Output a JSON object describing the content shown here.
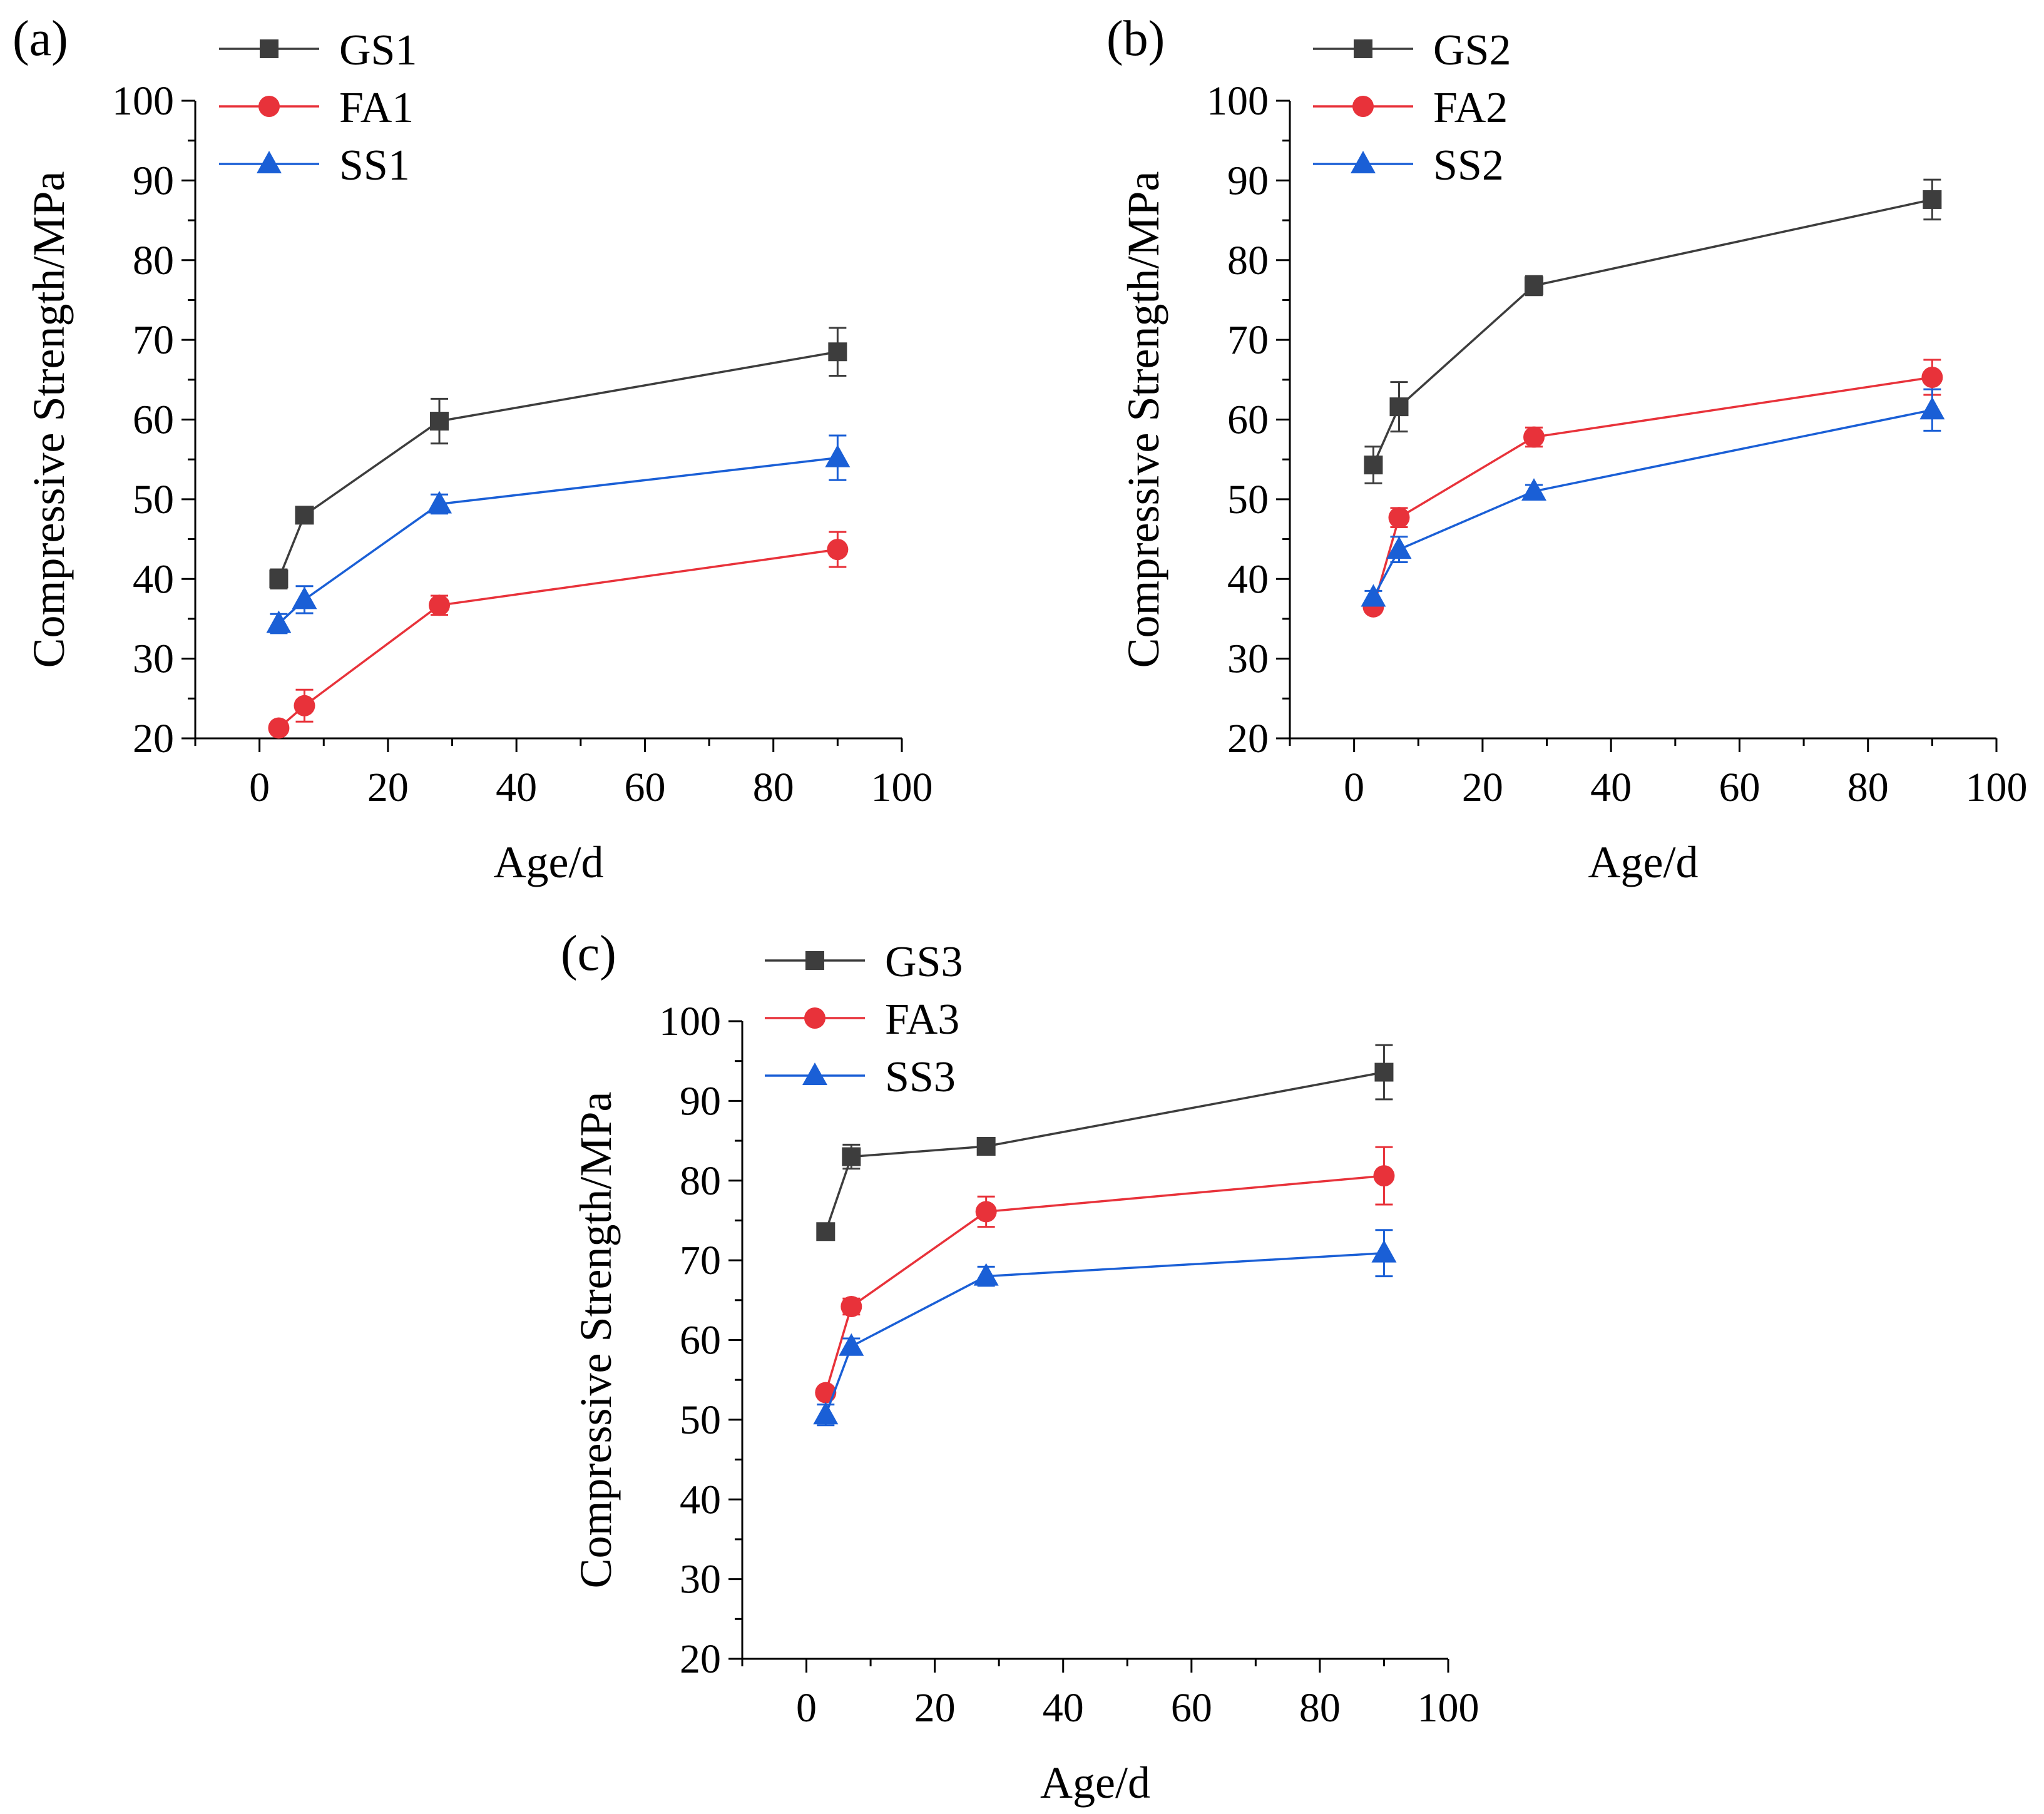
{
  "chart_data": [
    {
      "type": "line",
      "panel_label": "(a)",
      "xlabel": "Age/d",
      "ylabel": "Compressive Strength/MPa",
      "xlim": [
        -10,
        100
      ],
      "ylim": [
        20,
        100
      ],
      "x_ticks": [
        "0",
        "20",
        "40",
        "60",
        "80",
        "100"
      ],
      "y_ticks": [
        "20",
        "30",
        "40",
        "50",
        "60",
        "70",
        "80",
        "90",
        "100"
      ],
      "legend_position": "top-left",
      "x": [
        3,
        7,
        28,
        90
      ],
      "series": [
        {
          "name": "GS1",
          "color": "#3d3d3d",
          "marker": "square",
          "values": [
            40.0,
            48.0,
            59.8,
            68.5
          ],
          "errors": [
            1.2,
            0.6,
            2.8,
            3.0
          ]
        },
        {
          "name": "FA1",
          "color": "#e8323a",
          "marker": "circle",
          "values": [
            21.3,
            24.1,
            36.7,
            43.7
          ],
          "errors": [
            0.6,
            2.0,
            1.2,
            2.2
          ]
        },
        {
          "name": "SS1",
          "color": "#1a5fd6",
          "marker": "triangle",
          "values": [
            34.4,
            37.4,
            49.4,
            55.2
          ],
          "errors": [
            1.2,
            1.7,
            1.2,
            2.8
          ]
        }
      ]
    },
    {
      "type": "line",
      "panel_label": "(b)",
      "xlabel": "Age/d",
      "ylabel": "Compressive Strength/MPa",
      "xlim": [
        -10,
        100
      ],
      "ylim": [
        20,
        100
      ],
      "x_ticks": [
        "0",
        "20",
        "40",
        "60",
        "80",
        "100"
      ],
      "y_ticks": [
        "20",
        "30",
        "40",
        "50",
        "60",
        "70",
        "80",
        "90",
        "100"
      ],
      "legend_position": "top-left",
      "x": [
        3,
        7,
        28,
        90
      ],
      "series": [
        {
          "name": "GS2",
          "color": "#3d3d3d",
          "marker": "square",
          "values": [
            54.3,
            61.6,
            76.8,
            87.6
          ],
          "errors": [
            2.3,
            3.1,
            1.2,
            2.5
          ]
        },
        {
          "name": "FA2",
          "color": "#e8323a",
          "marker": "circle",
          "values": [
            36.5,
            47.7,
            57.8,
            65.3
          ],
          "errors": [
            0.6,
            1.2,
            1.2,
            2.2
          ]
        },
        {
          "name": "SS2",
          "color": "#1a5fd6",
          "marker": "triangle",
          "values": [
            37.7,
            43.7,
            51.0,
            61.2
          ],
          "errors": [
            0.8,
            1.6,
            0.8,
            2.6
          ]
        }
      ]
    },
    {
      "type": "line",
      "panel_label": "(c)",
      "xlabel": "Age/d",
      "ylabel": "Compressive Strength/MPa",
      "xlim": [
        -10,
        100
      ],
      "ylim": [
        20,
        100
      ],
      "x_ticks": [
        "0",
        "20",
        "40",
        "60",
        "80",
        "100"
      ],
      "y_ticks": [
        "20",
        "30",
        "40",
        "50",
        "60",
        "70",
        "80",
        "90",
        "100"
      ],
      "legend_position": "top-left",
      "x": [
        3,
        7,
        28,
        90
      ],
      "series": [
        {
          "name": "GS3",
          "color": "#3d3d3d",
          "marker": "square",
          "values": [
            73.6,
            83.0,
            84.3,
            93.6
          ],
          "errors": [
            0.6,
            1.5,
            0.8,
            3.4
          ]
        },
        {
          "name": "FA3",
          "color": "#e8323a",
          "marker": "circle",
          "values": [
            53.4,
            64.2,
            76.1,
            80.6
          ],
          "errors": [
            0.6,
            1.0,
            1.9,
            3.6
          ]
        },
        {
          "name": "SS3",
          "color": "#1a5fd6",
          "marker": "triangle",
          "values": [
            50.6,
            59.2,
            68.0,
            70.9
          ],
          "errors": [
            1.3,
            1.0,
            1.2,
            2.9
          ]
        }
      ]
    }
  ]
}
